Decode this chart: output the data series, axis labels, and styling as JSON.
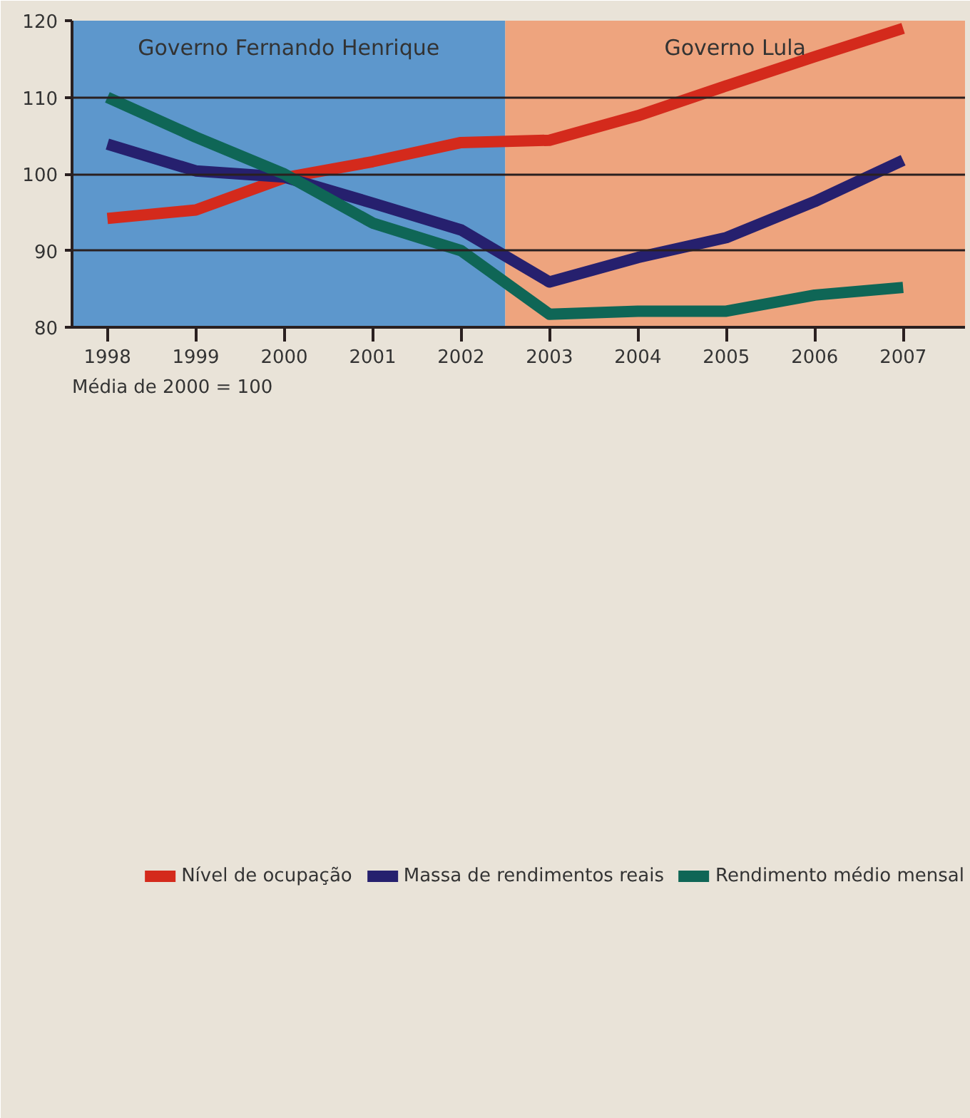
{
  "chart_data": {
    "type": "line",
    "x": [
      1998,
      1999,
      2000,
      2001,
      2002,
      2003,
      2004,
      2005,
      2006,
      2007
    ],
    "series": [
      {
        "name": "Nível de ocupação",
        "color": "#d42a1c",
        "values": [
          94.2,
          95.3,
          99.5,
          101.6,
          104.1,
          104.4,
          107.6,
          111.5,
          115.3,
          119.0
        ]
      },
      {
        "name": "Massa de rendimentos reais",
        "color": "#26206e",
        "values": [
          103.9,
          100.4,
          99.6,
          96.2,
          92.7,
          85.9,
          89.1,
          91.7,
          96.4,
          101.8
        ]
      },
      {
        "name": "Rendimento médio mensal",
        "color": "#0f6656",
        "values": [
          110.0,
          104.8,
          100.0,
          93.6,
          90.0,
          81.7,
          82.1,
          82.1,
          84.2,
          85.2
        ]
      }
    ],
    "xlim": [
      1997.6,
      2007.7
    ],
    "xticks": [
      1998,
      1999,
      2000,
      2001,
      2002,
      2003,
      2004,
      2005,
      2006,
      2007
    ],
    "ylim": [
      80,
      120
    ],
    "yticks": [
      80,
      90,
      100,
      110,
      120
    ],
    "bands": [
      {
        "axis": "x",
        "from": 1997.6,
        "to": 2002.5,
        "label": "Governo Fernando Henrique",
        "color": "#5d97cc"
      },
      {
        "axis": "x",
        "from": 2002.5,
        "to": 2007.7,
        "label": "Governo Lula",
        "color": "#eea47e"
      }
    ],
    "annotations": [
      "Média de 2000 = 100"
    ],
    "grid": "y",
    "legend": "bottom"
  }
}
